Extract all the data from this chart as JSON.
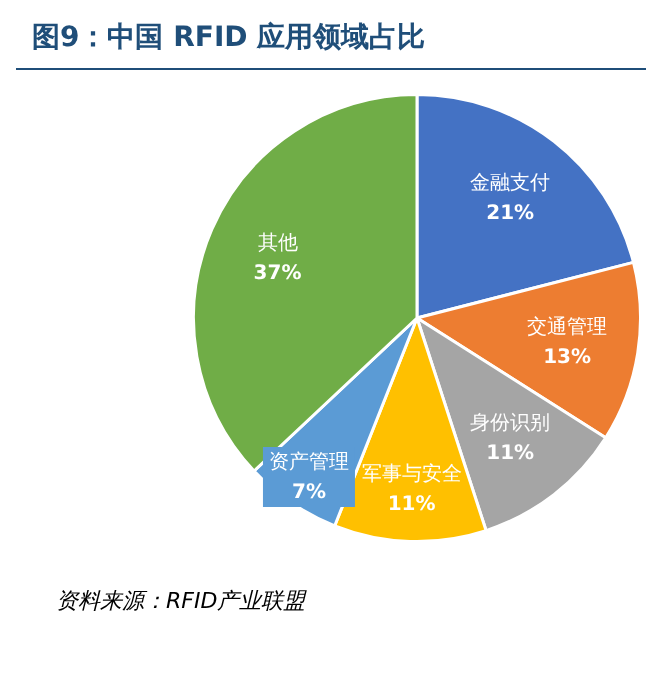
{
  "chart_data": {
    "type": "pie",
    "title": "图9：中国 RFID 应用领域占比",
    "categories": [
      "金融支付",
      "交通管理",
      "身份识别",
      "军事与安全",
      "资产管理",
      "其他"
    ],
    "values": [
      21,
      13,
      11,
      11,
      7,
      37
    ],
    "colors": [
      "#4472c4",
      "#ed7d31",
      "#a5a5a5",
      "#ffc000",
      "#5b9bd5",
      "#70ad47"
    ],
    "value_labels": [
      "21%",
      "13%",
      "11%",
      "11%",
      "7%",
      "37%"
    ],
    "annotations": [
      "资料来源：RFID产业联盟"
    ]
  }
}
